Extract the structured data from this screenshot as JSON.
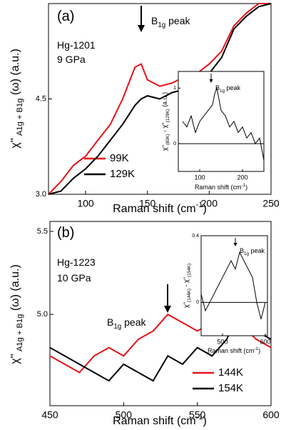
{
  "chart_data": [
    {
      "type": "line",
      "panel": [
        {
          "t": "(a)"
        }
      ],
      "annotations": [
        [
          {
            "t": "Hg-1201"
          }
        ],
        [
          {
            "t": "9 GPa"
          }
        ]
      ],
      "peak_label": [
        {
          "t": "B"
        },
        {
          "t": "1g",
          "s": "sub"
        },
        {
          "t": " peak"
        }
      ],
      "xlabel": [
        {
          "t": "Raman shift (cm"
        },
        {
          "t": "-1",
          "s": "super"
        },
        {
          "t": ")"
        }
      ],
      "ylabel": [
        {
          "t": "χ''"
        },
        {
          "t": " A1g + B1g",
          "s": "sub"
        },
        {
          "t": " (ω)   (a.u.)"
        }
      ],
      "x": [
        70,
        80,
        90,
        100,
        110,
        120,
        130,
        140,
        145,
        150,
        160,
        170,
        180,
        190,
        200,
        210,
        220,
        230,
        240,
        250
      ],
      "series": [
        {
          "name": "99K",
          "color": "#e8121a",
          "values": [
            3.0,
            3.2,
            3.45,
            3.6,
            3.85,
            4.1,
            4.5,
            5.0,
            5.05,
            4.8,
            4.7,
            4.75,
            4.85,
            4.9,
            5.05,
            5.25,
            5.65,
            5.85,
            6.0,
            6.0
          ]
        },
        {
          "name": "129K",
          "color": "#000000",
          "values": [
            3.0,
            3.05,
            3.25,
            3.4,
            3.6,
            3.85,
            4.1,
            4.4,
            4.5,
            4.55,
            4.5,
            4.6,
            4.65,
            4.75,
            4.9,
            5.15,
            5.6,
            5.8,
            5.95,
            6.0
          ]
        }
      ],
      "xlim": [
        70,
        250
      ],
      "xticks": [
        100,
        150,
        200,
        250
      ],
      "ylim": [
        3.0,
        6.0
      ],
      "yticks": [
        {
          "value": 3,
          "label": "3.0"
        },
        4.5
      ]
    },
    {
      "type": "line",
      "peak_label": [
        {
          "t": "B"
        },
        {
          "t": "1g",
          "s": "sub"
        },
        {
          "t": " peak"
        }
      ],
      "xlabel": [
        {
          "t": "Raman shift (cm"
        },
        {
          "t": "-1",
          "s": "super"
        },
        {
          "t": ")"
        }
      ],
      "ylabel": [
        {
          "t": "χ''"
        },
        {
          "t": "(80K)",
          "s": "sub"
        },
        {
          "t": " - χ''"
        },
        {
          "t": "(129K)",
          "s": "sub"
        },
        {
          "t": "  (a.u.)"
        }
      ],
      "x": [
        60,
        70,
        80,
        90,
        100,
        110,
        120,
        130,
        135,
        140,
        150,
        160,
        170,
        180,
        190,
        200,
        210,
        220,
        230,
        240,
        250
      ],
      "series": [
        {
          "color": "#000000",
          "values": [
            0.4,
            0.3,
            0.5,
            0.2,
            0.4,
            0.5,
            0.6,
            0.7,
            0.9,
            1.0,
            0.6,
            0.5,
            0.3,
            0.4,
            0.2,
            0.3,
            0.1,
            0.2,
            0.0,
            0.1,
            -0.3
          ]
        }
      ],
      "xlim": [
        50,
        250
      ],
      "xticks": [
        100,
        200
      ],
      "ylim": [
        -0.5,
        1.3
      ],
      "yticks": [
        0,
        1
      ],
      "zero_line": true
    },
    {
      "type": "line",
      "panel": [
        {
          "t": "(b)"
        }
      ],
      "annotations": [
        [
          {
            "t": "Hg-1223"
          }
        ],
        [
          {
            "t": "10 GPa"
          }
        ]
      ],
      "peak_label": [
        {
          "t": "B"
        },
        {
          "t": "1g",
          "s": "sub"
        },
        {
          "t": " peak"
        }
      ],
      "xlabel": [
        {
          "t": "Raman shift (cm"
        },
        {
          "t": "-1",
          "s": "super"
        },
        {
          "t": ")"
        }
      ],
      "ylabel": [
        {
          "t": "χ''"
        },
        {
          "t": " A1g + B1g",
          "s": "sub"
        },
        {
          "t": " (ω)   (a.u.)"
        }
      ],
      "x": [
        450,
        460,
        470,
        480,
        490,
        500,
        510,
        520,
        530,
        540,
        550,
        560,
        570,
        578,
        590,
        600
      ],
      "series": [
        {
          "name": "144K",
          "color": "#e8121a",
          "values": [
            4.75,
            4.7,
            4.65,
            4.75,
            4.8,
            4.75,
            4.85,
            4.9,
            5.0,
            4.95,
            4.9,
            4.95,
            4.9,
            4.95,
            4.85,
            4.8
          ]
        },
        {
          "name": "154K",
          "color": "#000000",
          "values": [
            4.8,
            4.75,
            4.7,
            4.65,
            4.6,
            4.7,
            4.65,
            4.6,
            4.75,
            4.7,
            4.8,
            4.75,
            4.85,
            5.02,
            4.9,
            4.85
          ]
        }
      ],
      "xlim": [
        450,
        600
      ],
      "xticks": [
        450,
        500,
        550,
        600
      ],
      "ylim": [
        4.45,
        5.56
      ],
      "yticks": [
        {
          "value": 5,
          "label": "5.0"
        },
        5.5
      ]
    },
    {
      "type": "line",
      "peak_label": [
        {
          "t": "B"
        },
        {
          "t": "1g",
          "s": "sub"
        },
        {
          "t": " peak"
        }
      ],
      "xlabel": [
        {
          "t": "Raman shift (cm"
        },
        {
          "t": "-1",
          "s": "super"
        },
        {
          "t": ")"
        }
      ],
      "ylabel": [
        {
          "t": "χ''"
        },
        {
          "t": "(144K)",
          "s": "sub"
        },
        {
          "t": " - χ''"
        },
        {
          "t": "(154K)",
          "s": "sub"
        }
      ],
      "x": [
        450,
        460,
        470,
        480,
        490,
        500,
        510,
        520,
        530,
        540,
        550,
        560,
        570,
        580,
        590,
        600
      ],
      "series": [
        {
          "color": "#000000",
          "values": [
            0.05,
            -0.05,
            0.0,
            0.05,
            0.1,
            0.15,
            0.2,
            0.25,
            0.2,
            0.3,
            0.25,
            0.2,
            0.15,
            0.0,
            -0.1,
            0.0
          ]
        }
      ],
      "xlim": [
        450,
        605
      ],
      "xticks": [
        500,
        600
      ],
      "ylim": [
        -0.2,
        0.4
      ],
      "yticks": [
        0,
        0.4
      ],
      "zero_line": true
    }
  ]
}
